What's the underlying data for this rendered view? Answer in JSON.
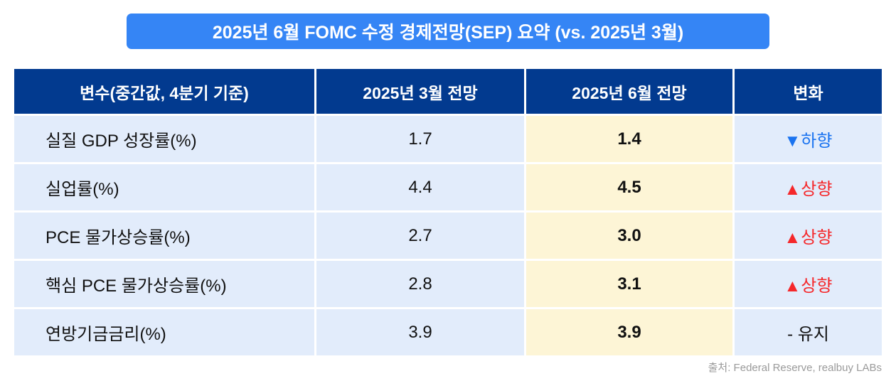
{
  "title": "2025년 6월 FOMC 수정 경제전망(SEP) 요약 (vs. 2025년 3월)",
  "headers": [
    "변수(중간값, 4분기 기준)",
    "2025년 3월 전망",
    "2025년 6월 전망",
    "변화"
  ],
  "rows": [
    {
      "variable": "실질 GDP 성장률(%)",
      "march": "1.7",
      "june": "1.4",
      "change": "▼하향",
      "direction": "down"
    },
    {
      "variable": "실업률(%)",
      "march": "4.4",
      "june": "4.5",
      "change": "▲상향",
      "direction": "up"
    },
    {
      "variable": "PCE 물가상승률(%)",
      "march": "2.7",
      "june": "3.0",
      "change": "▲상향",
      "direction": "up"
    },
    {
      "variable": "핵심 PCE 물가상승률(%)",
      "march": "2.8",
      "june": "3.1",
      "change": "▲상향",
      "direction": "up"
    },
    {
      "variable": "연방기금금리(%)",
      "march": "3.9",
      "june": "3.9",
      "change": "- 유지",
      "direction": "same"
    }
  ],
  "source": "출처: Federal Reserve, realbuy LABs",
  "colors": {
    "title_bg": "#3585f5",
    "header_bg": "#023a8f",
    "row_bg": "#e2ecfb",
    "june_bg": "#fdf5d6",
    "down": "#1a73f0",
    "up": "#f5282b"
  }
}
